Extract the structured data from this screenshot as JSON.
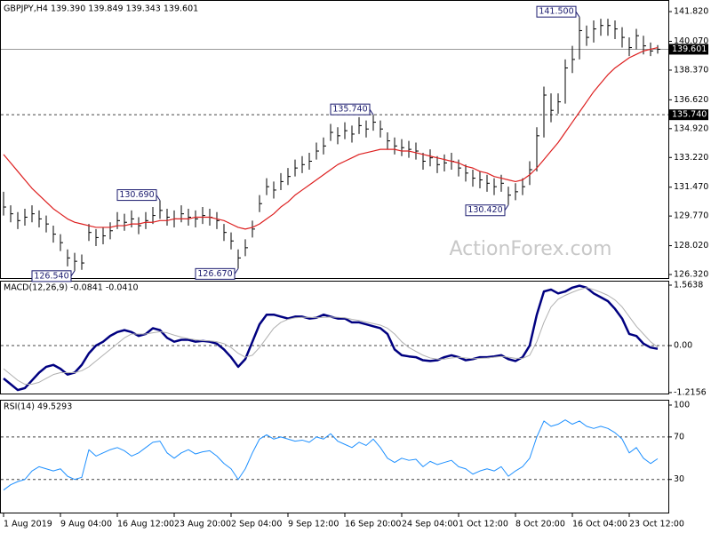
{
  "chart_data": [
    {
      "type": "ohlc",
      "title": "GBPJPY,H4  139.390 139.849 139.343 139.601",
      "watermark": "ActionForex.com",
      "grid": false,
      "ylim": [
        126.06,
        142.4
      ],
      "yticks": [
        {
          "value": 141.82,
          "label": "141.820"
        },
        {
          "value": 140.07,
          "label": "140.070"
        },
        {
          "value": 138.37,
          "label": "138.370"
        },
        {
          "value": 136.62,
          "label": "136.620"
        },
        {
          "value": 134.92,
          "label": "134.920"
        },
        {
          "value": 133.22,
          "label": "133.220"
        },
        {
          "value": 131.47,
          "label": "131.470"
        },
        {
          "value": 129.77,
          "label": "129.770"
        },
        {
          "value": 128.02,
          "label": "128.020"
        },
        {
          "value": 126.32,
          "label": "126.320"
        }
      ],
      "levels": [
        {
          "value": 139.601,
          "label": "139.601",
          "style": "solid"
        },
        {
          "value": 135.74,
          "label": "135.740",
          "style": "dashed"
        }
      ],
      "color": "#000000",
      "high": [
        131.2,
        130.4,
        130.0,
        130.2,
        130.4,
        130.1,
        129.8,
        129.2,
        128.7,
        127.8,
        127.6,
        127.5,
        129.3,
        129.0,
        129.1,
        129.4,
        130.0,
        129.9,
        130.1,
        129.7,
        130.0,
        130.3,
        130.69,
        130.2,
        130.1,
        130.4,
        130.2,
        130.1,
        130.3,
        130.2,
        130.0,
        129.3,
        128.8,
        127.8,
        128.4,
        129.5,
        131.0,
        132.0,
        131.8,
        132.3,
        132.6,
        133.1,
        133.3,
        133.5,
        134.1,
        134.4,
        135.2,
        135.0,
        135.3,
        135.1,
        135.6,
        135.4,
        135.74,
        135.4,
        134.7,
        134.4,
        134.3,
        134.2,
        134.1,
        133.5,
        133.7,
        133.3,
        133.4,
        133.5,
        133.1,
        132.8,
        132.5,
        132.4,
        132.2,
        132.0,
        132.2,
        131.5,
        131.7,
        132.0,
        133.0,
        135.0,
        137.4,
        137.0,
        137.0,
        139.0,
        139.8,
        141.5,
        141.0,
        141.3,
        141.4,
        141.4,
        141.3,
        140.9,
        140.3,
        140.8,
        140.4,
        140.0,
        139.849
      ],
      "low": [
        129.8,
        129.4,
        129.0,
        129.2,
        129.4,
        129.1,
        128.8,
        128.2,
        127.7,
        126.8,
        126.54,
        126.6,
        128.3,
        128.0,
        128.1,
        128.4,
        129.0,
        128.9,
        129.1,
        128.7,
        129.0,
        129.3,
        129.6,
        129.2,
        129.1,
        129.4,
        129.2,
        129.1,
        129.3,
        129.2,
        129.0,
        128.3,
        127.8,
        126.67,
        127.4,
        128.5,
        130.0,
        131.0,
        130.8,
        131.3,
        131.6,
        132.1,
        132.3,
        132.5,
        133.1,
        133.4,
        134.2,
        134.0,
        134.3,
        134.1,
        134.6,
        134.4,
        134.8,
        134.4,
        133.7,
        133.4,
        133.3,
        133.2,
        133.1,
        132.5,
        132.7,
        132.3,
        132.4,
        132.5,
        132.1,
        131.8,
        131.5,
        131.4,
        131.2,
        131.0,
        131.2,
        130.42,
        130.7,
        131.0,
        131.6,
        132.4,
        134.4,
        135.3,
        135.8,
        136.4,
        138.2,
        139.0,
        139.8,
        140.0,
        140.4,
        140.4,
        140.2,
        139.7,
        139.2,
        139.6,
        139.3,
        139.2,
        139.343
      ],
      "close": [
        130.3,
        129.9,
        129.5,
        129.7,
        129.9,
        129.6,
        129.3,
        128.7,
        128.2,
        127.3,
        127.1,
        127.0,
        128.8,
        128.5,
        128.6,
        128.9,
        129.5,
        129.4,
        129.6,
        129.2,
        129.5,
        129.8,
        130.1,
        129.7,
        129.6,
        129.9,
        129.7,
        129.6,
        129.8,
        129.7,
        129.5,
        128.8,
        128.3,
        127.3,
        127.9,
        129.0,
        130.5,
        131.5,
        131.3,
        131.8,
        132.1,
        132.6,
        132.8,
        133.0,
        133.6,
        133.9,
        134.7,
        134.5,
        134.8,
        134.6,
        135.1,
        134.9,
        135.3,
        134.9,
        134.2,
        133.9,
        133.8,
        133.7,
        133.6,
        133.0,
        133.2,
        132.8,
        132.9,
        133.0,
        132.6,
        132.3,
        132.0,
        131.9,
        131.7,
        131.5,
        131.7,
        131.0,
        131.2,
        131.5,
        132.5,
        134.5,
        136.9,
        136.0,
        136.5,
        138.5,
        139.0,
        140.7,
        140.3,
        140.8,
        141.0,
        141.0,
        140.8,
        140.3,
        139.7,
        140.4,
        139.8,
        139.5,
        139.601
      ],
      "ma": {
        "color": "#dd1f1f",
        "values": [
          133.4,
          132.9,
          132.4,
          131.9,
          131.4,
          131.0,
          130.6,
          130.2,
          129.9,
          129.6,
          129.4,
          129.3,
          129.2,
          129.1,
          129.1,
          129.1,
          129.2,
          129.2,
          129.3,
          129.3,
          129.4,
          129.4,
          129.5,
          129.5,
          129.6,
          129.6,
          129.6,
          129.7,
          129.7,
          129.7,
          129.6,
          129.5,
          129.3,
          129.1,
          129.0,
          129.1,
          129.3,
          129.6,
          129.9,
          130.3,
          130.6,
          131.0,
          131.3,
          131.6,
          131.9,
          132.2,
          132.5,
          132.8,
          133.0,
          133.2,
          133.4,
          133.5,
          133.6,
          133.7,
          133.7,
          133.7,
          133.6,
          133.6,
          133.5,
          133.4,
          133.3,
          133.2,
          133.1,
          133.0,
          132.9,
          132.7,
          132.6,
          132.4,
          132.3,
          132.1,
          132.0,
          131.9,
          131.8,
          131.9,
          132.2,
          132.6,
          133.1,
          133.6,
          134.1,
          134.7,
          135.3,
          135.9,
          136.5,
          137.1,
          137.6,
          138.1,
          138.5,
          138.8,
          139.1,
          139.3,
          139.5,
          139.6,
          139.7
        ]
      },
      "annotations": [
        {
          "label": "141.500",
          "value": 141.5,
          "index": 81
        },
        {
          "label": "135.740",
          "value": 135.74,
          "index": 52
        },
        {
          "label": "130.690",
          "value": 130.69,
          "index": 22
        },
        {
          "label": "130.420",
          "value": 130.42,
          "index": 71
        },
        {
          "label": "126.540",
          "value": 126.54,
          "index": 10
        },
        {
          "label": "126.670",
          "value": 126.67,
          "index": 33
        }
      ]
    },
    {
      "type": "line",
      "title": "MACD(12,26,9) -0.0841 -0.0410",
      "grid": false,
      "ylim": [
        -1.264,
        1.679
      ],
      "yticks": [
        1.5638,
        {
          "value": 0,
          "label": "0.00"
        },
        -1.2156
      ],
      "levels": [
        {
          "value": 0,
          "style": "dashed"
        }
      ],
      "series": [
        {
          "color": "#000080",
          "width": 2.5,
          "values": [
            -0.85,
            -1.0,
            -1.15,
            -1.1,
            -0.9,
            -0.7,
            -0.55,
            -0.5,
            -0.6,
            -0.75,
            -0.7,
            -0.5,
            -0.2,
            0.0,
            0.1,
            0.25,
            0.35,
            0.4,
            0.35,
            0.25,
            0.3,
            0.45,
            0.4,
            0.2,
            0.1,
            0.15,
            0.15,
            0.1,
            0.12,
            0.1,
            0.05,
            -0.1,
            -0.3,
            -0.55,
            -0.35,
            0.1,
            0.55,
            0.8,
            0.8,
            0.75,
            0.7,
            0.75,
            0.75,
            0.7,
            0.72,
            0.8,
            0.75,
            0.7,
            0.7,
            0.6,
            0.6,
            0.55,
            0.5,
            0.45,
            0.3,
            -0.1,
            -0.25,
            -0.28,
            -0.3,
            -0.38,
            -0.4,
            -0.38,
            -0.3,
            -0.25,
            -0.3,
            -0.38,
            -0.35,
            -0.3,
            -0.3,
            -0.28,
            -0.25,
            -0.35,
            -0.4,
            -0.3,
            0.0,
            0.8,
            1.4,
            1.45,
            1.35,
            1.4,
            1.5,
            1.55,
            1.5,
            1.35,
            1.25,
            1.15,
            0.95,
            0.7,
            0.3,
            0.25,
            0.05,
            -0.05,
            -0.0841
          ]
        },
        {
          "color": "#b0b0b0",
          "width": 1,
          "values": [
            -0.6,
            -0.75,
            -0.9,
            -1.0,
            -1.0,
            -0.95,
            -0.85,
            -0.75,
            -0.7,
            -0.7,
            -0.7,
            -0.65,
            -0.55,
            -0.4,
            -0.25,
            -0.1,
            0.05,
            0.2,
            0.3,
            0.3,
            0.3,
            0.33,
            0.36,
            0.33,
            0.27,
            0.22,
            0.18,
            0.15,
            0.13,
            0.12,
            0.1,
            0.05,
            -0.05,
            -0.2,
            -0.3,
            -0.25,
            -0.05,
            0.2,
            0.45,
            0.6,
            0.68,
            0.72,
            0.73,
            0.73,
            0.72,
            0.73,
            0.74,
            0.73,
            0.72,
            0.68,
            0.65,
            0.61,
            0.57,
            0.53,
            0.45,
            0.3,
            0.1,
            -0.05,
            -0.15,
            -0.25,
            -0.32,
            -0.35,
            -0.35,
            -0.32,
            -0.3,
            -0.32,
            -0.34,
            -0.33,
            -0.32,
            -0.3,
            -0.28,
            -0.3,
            -0.33,
            -0.33,
            -0.25,
            0.1,
            0.6,
            1.0,
            1.2,
            1.3,
            1.38,
            1.45,
            1.5,
            1.45,
            1.38,
            1.3,
            1.18,
            1.0,
            0.75,
            0.5,
            0.3,
            0.1,
            -0.041
          ]
        }
      ]
    },
    {
      "type": "line",
      "title": "RSI(14) 49.5293",
      "grid": false,
      "ylim": [
        -2,
        105
      ],
      "yticks": [
        100,
        70,
        30
      ],
      "levels": [
        {
          "value": 70,
          "style": "dashed"
        },
        {
          "value": 30,
          "style": "dashed"
        }
      ],
      "series": [
        {
          "color": "#1e90ff",
          "width": 1,
          "values": [
            20,
            25,
            28,
            30,
            38,
            42,
            40,
            38,
            40,
            33,
            30,
            32,
            58,
            52,
            55,
            58,
            60,
            57,
            52,
            55,
            60,
            65,
            66,
            55,
            50,
            55,
            58,
            54,
            56,
            57,
            52,
            45,
            40,
            30,
            40,
            55,
            68,
            72,
            68,
            70,
            68,
            66,
            67,
            65,
            70,
            68,
            73,
            66,
            63,
            60,
            65,
            62,
            68,
            60,
            50,
            46,
            50,
            48,
            49,
            42,
            47,
            44,
            46,
            48,
            42,
            40,
            35,
            38,
            40,
            38,
            42,
            33,
            38,
            42,
            50,
            70,
            85,
            80,
            82,
            86,
            82,
            85,
            80,
            78,
            80,
            78,
            74,
            68,
            55,
            60,
            50,
            45,
            49.5293
          ]
        }
      ],
      "xticks": [
        {
          "value": 0,
          "label": "1 Aug 2019"
        },
        {
          "value": 8,
          "label": "9 Aug 04:00"
        },
        {
          "value": 16,
          "label": "16 Aug 12:00"
        },
        {
          "value": 24,
          "label": "23 Aug 20:00"
        },
        {
          "value": 32,
          "label": "2 Sep 04:00"
        },
        {
          "value": 40,
          "label": "9 Sep 12:00"
        },
        {
          "value": 48,
          "label": "16 Sep 20:00"
        },
        {
          "value": 56,
          "label": "24 Sep 04:00"
        },
        {
          "value": 64,
          "label": "1 Oct 12:00"
        },
        {
          "value": 72,
          "label": "8 Oct 20:00"
        },
        {
          "value": 80,
          "label": "16 Oct 04:00"
        },
        {
          "value": 88,
          "label": "23 Oct 12:00"
        }
      ]
    }
  ]
}
